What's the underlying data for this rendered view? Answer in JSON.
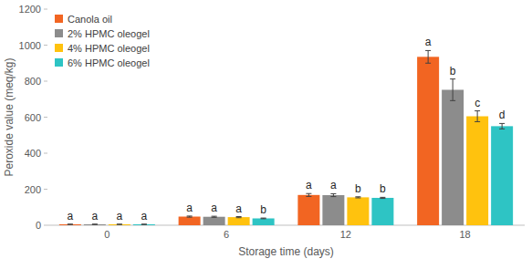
{
  "chart_data": {
    "type": "bar",
    "x_label": "Storage time (days)",
    "y_label": "Peroxide value (meq/kg)",
    "categories": [
      "0",
      "6",
      "12",
      "18"
    ],
    "series": [
      {
        "name": "Canola oil",
        "color": "#f26522",
        "values": [
          5,
          48,
          168,
          935
        ],
        "errors": [
          1,
          3,
          8,
          35
        ],
        "letters": [
          "a",
          "a",
          "a",
          "a"
        ]
      },
      {
        "name": "2% HPMC oleogel",
        "color": "#8c8c8c",
        "values": [
          5,
          47,
          167,
          752
        ],
        "errors": [
          1,
          3,
          8,
          60
        ],
        "letters": [
          "a",
          "a",
          "a",
          "b"
        ]
      },
      {
        "name": "4% HPMC oleogel",
        "color": "#ffc20e",
        "values": [
          5,
          45,
          155,
          605
        ],
        "errors": [
          1,
          3,
          3,
          30
        ],
        "letters": [
          "a",
          "a",
          "b",
          "c"
        ]
      },
      {
        "name": "6% HPMC oleogel",
        "color": "#2ec4c4",
        "values": [
          5,
          38,
          152,
          550
        ],
        "errors": [
          1,
          2,
          3,
          15
        ],
        "letters": [
          "a",
          "b",
          "b",
          "d"
        ]
      }
    ],
    "ylim": [
      0,
      1200
    ],
    "yticks": [
      0,
      200,
      400,
      600,
      800,
      1000,
      1200
    ],
    "grid": false,
    "legend": "top-left"
  }
}
